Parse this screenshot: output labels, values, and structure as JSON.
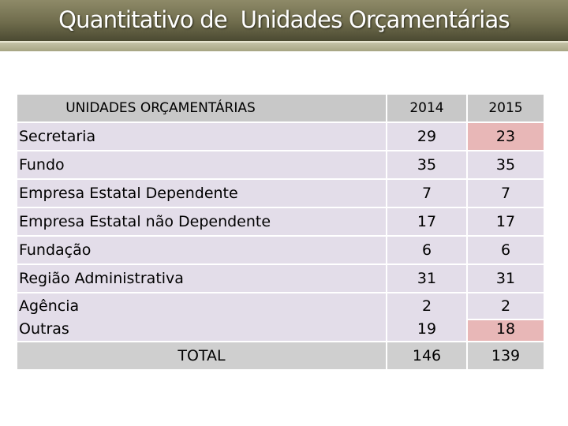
{
  "header": {
    "title": "Quantitativo de  Unidades Orçamentárias"
  },
  "table": {
    "columns": [
      "UNIDADES ORÇAMENTÁRIAS",
      "2014",
      "2015"
    ],
    "rows": [
      {
        "label": "Secretaria",
        "y2014": "29",
        "y2015": "23"
      },
      {
        "label": "Fundo",
        "y2014": "35",
        "y2015": "35"
      },
      {
        "label": "Empresa Estatal Dependente",
        "y2014": "7",
        "y2015": "7"
      },
      {
        "label": "Empresa Estatal não Dependente",
        "y2014": "17",
        "y2015": "17"
      },
      {
        "label": "Fundação",
        "y2014": "6",
        "y2015": "6"
      },
      {
        "label": "Região Administrativa",
        "y2014": "31",
        "y2015": "31"
      },
      {
        "label": "Agência",
        "y2014": "2",
        "y2015": "2"
      },
      {
        "label": "Outras",
        "y2014": "19",
        "y2015": "18"
      }
    ],
    "total": {
      "label": "TOTAL",
      "y2014": "146",
      "y2015": "139"
    }
  },
  "colors": {
    "header_bg": "#c8c8c8",
    "row_bg": "#e3dde9",
    "highlight_bg": "#e8b7b7",
    "total_bg": "#cfcfcf"
  }
}
